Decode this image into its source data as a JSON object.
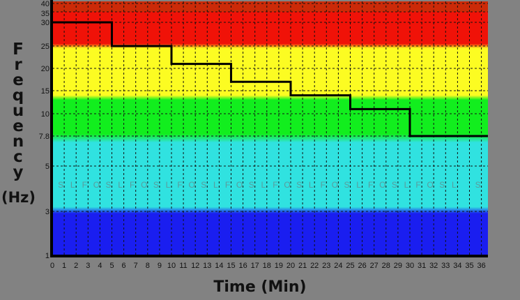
{
  "chart_data": {
    "type": "line",
    "xlabel": "Time (Min)",
    "ylabel_letters": [
      "F",
      "r",
      "e",
      "q",
      "u",
      "e",
      "n",
      "c",
      "y"
    ],
    "ylabel_unit": "(Hz)",
    "xlim": [
      0,
      36
    ],
    "x_ticks": [
      0,
      1,
      2,
      3,
      4,
      5,
      6,
      7,
      8,
      9,
      10,
      11,
      12,
      13,
      14,
      15,
      16,
      17,
      18,
      19,
      20,
      21,
      22,
      23,
      24,
      25,
      26,
      27,
      28,
      29,
      30,
      31,
      32,
      33,
      34,
      35,
      36
    ],
    "y_ticks": [
      1,
      3,
      5,
      7.8,
      10,
      15,
      20,
      25,
      30,
      35,
      40
    ],
    "y_scale": "nonuniform (tick-spaced)",
    "grid": true,
    "series": [
      {
        "style": "step",
        "color": "#000000",
        "x": [
          0,
          5,
          10,
          15,
          20,
          25,
          30,
          36
        ],
        "y": [
          30,
          25,
          21,
          17,
          14,
          11,
          7.8,
          7.8
        ]
      }
    ],
    "background_bands": [
      {
        "from": 35,
        "to": 40,
        "color": "#cc2a08"
      },
      {
        "from": 25.5,
        "to": 35,
        "color": "#f01208"
      },
      {
        "from": 14,
        "to": 24.5,
        "color": "#fcfc22"
      },
      {
        "from": 8,
        "to": 13,
        "color": "#12ee1e"
      },
      {
        "from": 3.2,
        "to": 7.2,
        "color": "#30e2e0"
      },
      {
        "from": 1,
        "to": 2.9,
        "color": "#1a1ef0"
      }
    ],
    "annotations": {
      "y": 4.2,
      "letters": [
        "S",
        "L",
        "F",
        "O",
        "S",
        "L",
        "F",
        "O",
        "S",
        "L",
        "F",
        "O",
        "S",
        "L",
        "F",
        "O",
        "S",
        "L",
        "F",
        "O",
        "S",
        "L",
        "F",
        "O",
        "S",
        "L",
        "F",
        "O",
        "S",
        "L",
        "F",
        "O",
        "S",
        "L",
        "",
        "S"
      ]
    }
  }
}
